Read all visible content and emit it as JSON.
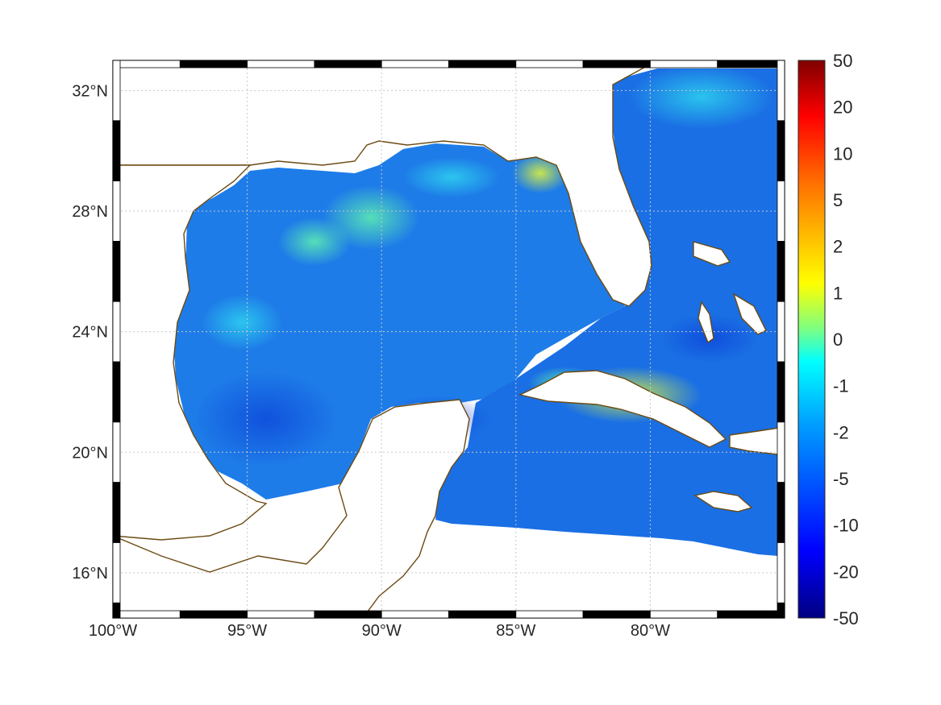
{
  "map": {
    "projection": "equidistant-cylindrical",
    "extent": {
      "lon": [
        -100,
        -75
      ],
      "lat": [
        14.5,
        33
      ]
    },
    "grid": true,
    "frame_style": "black-white-alternating-border",
    "longitude_ticks": [
      {
        "value": -100,
        "label": "100°W"
      },
      {
        "value": -95,
        "label": "95°W"
      },
      {
        "value": -90,
        "label": "90°W"
      },
      {
        "value": -85,
        "label": "85°W"
      },
      {
        "value": -80,
        "label": "80°W"
      }
    ],
    "latitude_ticks": [
      {
        "value": 16,
        "label": "16°N"
      },
      {
        "value": 20,
        "label": "20°N"
      },
      {
        "value": 24,
        "label": "24°N"
      },
      {
        "value": 28,
        "label": "28°N"
      },
      {
        "value": 32,
        "label": "32°N"
      }
    ],
    "coastline_color": "#6b4a12",
    "land_color": "#ffffff",
    "field_dominant_color": "#1e78e6"
  },
  "colorbar": {
    "colormap": "jet",
    "ticks": [
      "50",
      "20",
      "10",
      "5",
      "2",
      "1",
      "0",
      "-1",
      "-2",
      "-5",
      "-10",
      "-20",
      "-50"
    ],
    "top_color": "#800000",
    "bottom_color": "#000080"
  }
}
